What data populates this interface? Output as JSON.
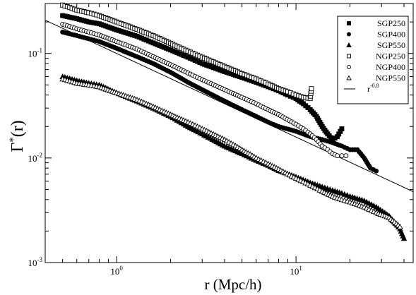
{
  "chart_data": {
    "type": "scatter",
    "x_scale": "log",
    "y_scale": "log",
    "xlim": [
      0.4,
      45
    ],
    "ylim": [
      0.001,
      0.3
    ],
    "xlabel": "r (Mpc/h)",
    "ylabel_main": "Γ",
    "ylabel_sup": "*",
    "ylabel_tail": "(r)",
    "x_ticks": [
      {
        "value": 1,
        "base": "10",
        "exp": "0"
      },
      {
        "value": 10,
        "base": "10",
        "exp": "1"
      }
    ],
    "y_ticks": [
      {
        "value": 0.001,
        "base": "10",
        "exp": "-3"
      },
      {
        "value": 0.01,
        "base": "10",
        "exp": "-2"
      },
      {
        "value": 0.1,
        "base": "10",
        "exp": "-1"
      }
    ],
    "legend_position": "top-right",
    "reference_line": {
      "label_base": "r",
      "label_exp": "-0.8",
      "slope": -0.8,
      "amplitude": 0.1
    },
    "series": [
      {
        "name": "SGP250",
        "marker": "square-filled",
        "points": [
          [
            0.5,
            0.23
          ],
          [
            0.6,
            0.215
          ],
          [
            0.7,
            0.2
          ],
          [
            0.8,
            0.192
          ],
          [
            1.0,
            0.168
          ],
          [
            1.3,
            0.146
          ],
          [
            1.6,
            0.126
          ],
          [
            2.0,
            0.108
          ],
          [
            2.5,
            0.092
          ],
          [
            3.0,
            0.08
          ],
          [
            4.0,
            0.067
          ],
          [
            5.0,
            0.059
          ],
          [
            6.0,
            0.053
          ],
          [
            7.0,
            0.048
          ],
          [
            8.0,
            0.044
          ],
          [
            9.0,
            0.04
          ],
          [
            10.0,
            0.037
          ],
          [
            11.0,
            0.033
          ],
          [
            12.0,
            0.029
          ],
          [
            13.0,
            0.025
          ],
          [
            14.0,
            0.02
          ],
          [
            15.0,
            0.017
          ],
          [
            16.0,
            0.015
          ],
          [
            17.0,
            0.016
          ],
          [
            18.0,
            0.019
          ]
        ]
      },
      {
        "name": "SGP400",
        "marker": "circle-filled",
        "points": [
          [
            0.5,
            0.16
          ],
          [
            0.6,
            0.148
          ],
          [
            0.7,
            0.138
          ],
          [
            0.8,
            0.13
          ],
          [
            1.0,
            0.112
          ],
          [
            1.3,
            0.093
          ],
          [
            1.6,
            0.08
          ],
          [
            2.0,
            0.066
          ],
          [
            2.5,
            0.053
          ],
          [
            3.0,
            0.045
          ],
          [
            4.0,
            0.035
          ],
          [
            5.0,
            0.029
          ],
          [
            6.0,
            0.025
          ],
          [
            7.0,
            0.022
          ],
          [
            8.0,
            0.02
          ],
          [
            10.0,
            0.018
          ],
          [
            12.0,
            0.016
          ],
          [
            14.0,
            0.015
          ],
          [
            16.0,
            0.014
          ],
          [
            18.0,
            0.013
          ],
          [
            20.0,
            0.012
          ],
          [
            22.0,
            0.012
          ],
          [
            24.0,
            0.01
          ],
          [
            26.0,
            0.008
          ],
          [
            28.0,
            0.0075
          ]
        ]
      },
      {
        "name": "SGP550",
        "marker": "triangle-filled",
        "points": [
          [
            0.5,
            0.06
          ],
          [
            0.6,
            0.055
          ],
          [
            0.7,
            0.052
          ],
          [
            0.8,
            0.05
          ],
          [
            1.0,
            0.042
          ],
          [
            1.3,
            0.035
          ],
          [
            1.6,
            0.03
          ],
          [
            2.0,
            0.025
          ],
          [
            2.5,
            0.02
          ],
          [
            3.0,
            0.017
          ],
          [
            4.0,
            0.013
          ],
          [
            5.0,
            0.011
          ],
          [
            6.0,
            0.0095
          ],
          [
            7.0,
            0.0085
          ],
          [
            8.0,
            0.0076
          ],
          [
            10.0,
            0.0066
          ],
          [
            12.0,
            0.0058
          ],
          [
            14.0,
            0.0053
          ],
          [
            16.0,
            0.0049
          ],
          [
            18.0,
            0.0046
          ],
          [
            20.0,
            0.0043
          ],
          [
            24.0,
            0.0039
          ],
          [
            28.0,
            0.0034
          ],
          [
            33.0,
            0.0028
          ],
          [
            38.0,
            0.0021
          ],
          [
            40.0,
            0.0017
          ]
        ]
      },
      {
        "name": "NGP250",
        "marker": "square-open",
        "points": [
          [
            0.5,
            0.29
          ],
          [
            0.6,
            0.26
          ],
          [
            0.7,
            0.245
          ],
          [
            0.8,
            0.23
          ],
          [
            1.0,
            0.2
          ],
          [
            1.3,
            0.17
          ],
          [
            1.6,
            0.148
          ],
          [
            2.0,
            0.125
          ],
          [
            2.5,
            0.105
          ],
          [
            3.0,
            0.092
          ],
          [
            4.0,
            0.075
          ],
          [
            5.0,
            0.064
          ],
          [
            6.0,
            0.057
          ],
          [
            7.0,
            0.051
          ],
          [
            8.0,
            0.046
          ],
          [
            9.0,
            0.043
          ],
          [
            10.0,
            0.04
          ],
          [
            11.0,
            0.038
          ],
          [
            12.0,
            0.037
          ],
          [
            12.2,
            0.046
          ]
        ]
      },
      {
        "name": "NGP400",
        "marker": "circle-open",
        "points": [
          [
            0.5,
            0.19
          ],
          [
            0.6,
            0.172
          ],
          [
            0.7,
            0.16
          ],
          [
            0.8,
            0.15
          ],
          [
            1.0,
            0.13
          ],
          [
            1.3,
            0.11
          ],
          [
            1.6,
            0.093
          ],
          [
            2.0,
            0.078
          ],
          [
            2.5,
            0.065
          ],
          [
            3.0,
            0.056
          ],
          [
            4.0,
            0.045
          ],
          [
            5.0,
            0.038
          ],
          [
            6.0,
            0.033
          ],
          [
            7.0,
            0.029
          ],
          [
            8.0,
            0.026
          ],
          [
            10.0,
            0.021
          ],
          [
            11.0,
            0.019
          ],
          [
            12.0,
            0.017
          ],
          [
            13.0,
            0.015
          ],
          [
            14.0,
            0.013
          ],
          [
            15.0,
            0.012
          ],
          [
            16.0,
            0.011
          ],
          [
            17.0,
            0.0105
          ],
          [
            18.0,
            0.0105
          ],
          [
            19.0,
            0.0105
          ]
        ]
      },
      {
        "name": "NGP550",
        "marker": "triangle-open",
        "points": [
          [
            0.5,
            0.057
          ],
          [
            0.6,
            0.052
          ],
          [
            0.7,
            0.05
          ],
          [
            0.8,
            0.048
          ],
          [
            1.0,
            0.042
          ],
          [
            1.3,
            0.036
          ],
          [
            1.6,
            0.031
          ],
          [
            2.0,
            0.026
          ],
          [
            2.5,
            0.022
          ],
          [
            3.0,
            0.019
          ],
          [
            4.0,
            0.015
          ],
          [
            5.0,
            0.012
          ],
          [
            6.0,
            0.01
          ],
          [
            7.0,
            0.0088
          ],
          [
            8.0,
            0.0078
          ],
          [
            10.0,
            0.0064
          ],
          [
            12.0,
            0.0055
          ],
          [
            14.0,
            0.0048
          ],
          [
            16.0,
            0.0043
          ],
          [
            18.0,
            0.004
          ],
          [
            20.0,
            0.0038
          ],
          [
            24.0,
            0.0034
          ],
          [
            28.0,
            0.003
          ],
          [
            33.0,
            0.0027
          ],
          [
            38.0,
            0.0022
          ]
        ]
      }
    ]
  }
}
